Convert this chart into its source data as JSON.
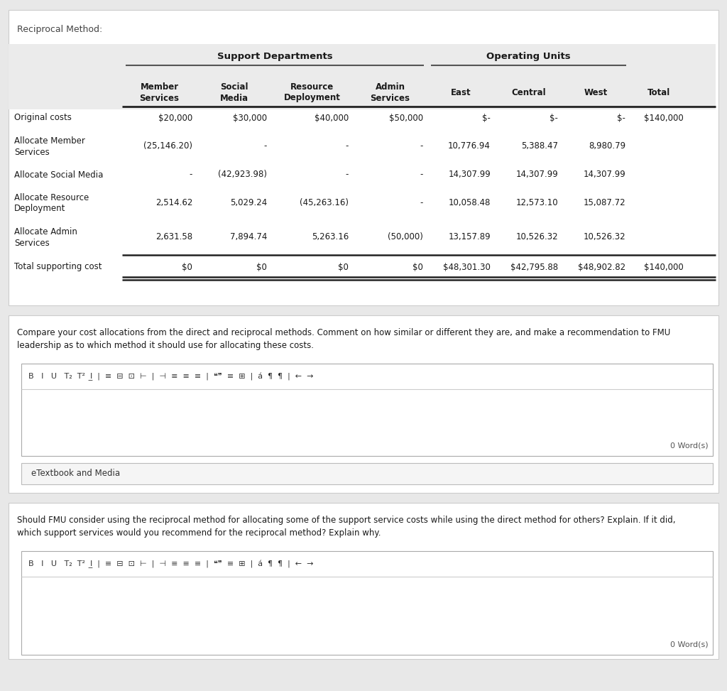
{
  "title": "Reciprocal Method:",
  "bg_color": "#e8e8e8",
  "support_dept_label": "Support Departments",
  "operating_units_label": "Operating Units",
  "col_headers": [
    "Member\nServices",
    "Social\nMedia",
    "Resource\nDeployment",
    "Admin\nServices",
    "East",
    "Central",
    "West",
    "Total"
  ],
  "row_labels": [
    "Original costs",
    "Allocate Member\nServices",
    "Allocate Social Media",
    "Allocate Resource\nDeployment",
    "Allocate Admin\nServices",
    "Total supporting cost"
  ],
  "table_data": [
    [
      "$20,000",
      "$30,000",
      "$40,000",
      "$50,000",
      "$-",
      "$-",
      "$-",
      "$140,000"
    ],
    [
      "(25,146.20)",
      "-",
      "-",
      "-",
      "10,776.94",
      "5,388.47",
      "8,980.79",
      ""
    ],
    [
      "-",
      "(42,923.98)",
      "-",
      "-",
      "14,307.99",
      "14,307.99",
      "14,307.99",
      ""
    ],
    [
      "2,514.62",
      "5,029.24",
      "(45,263.16)",
      "-",
      "10,058.48",
      "12,573.10",
      "15,087.72",
      ""
    ],
    [
      "2,631.58",
      "7,894.74",
      "5,263.16",
      "(50,000)",
      "13,157.89",
      "10,526.32",
      "10,526.32",
      ""
    ],
    [
      "$0",
      "$0",
      "$0",
      "$0",
      "$48,301.30",
      "$42,795.88",
      "$48,902.82",
      "$140,000"
    ]
  ],
  "compare_text1": "Compare your cost allocations from the direct and reciprocal methods. Comment on how similar or different they are, and make a recommendation to FMU",
  "compare_text2": "leadership as to which method it should use for allocating these costs.",
  "etextbook_label": "eTextbook and Media",
  "second_q1": "Should FMU consider using the reciprocal method for allocating some of the support service costs while using the direct method for others? Explain. If it did,",
  "second_q2": "which support services would you recommend for the reciprocal method? Explain why.",
  "word_count_label": "0 Word(s)",
  "toolbar_icons": "B   I   U   T₂   T²   ᴵ   |   ≡   ≡   ≡   ≡   |   ≡   ≡   ≡   ≡   |   ❝❞   ≡   ⊞   |   á   ¶   ¶↑   |   ←   →"
}
